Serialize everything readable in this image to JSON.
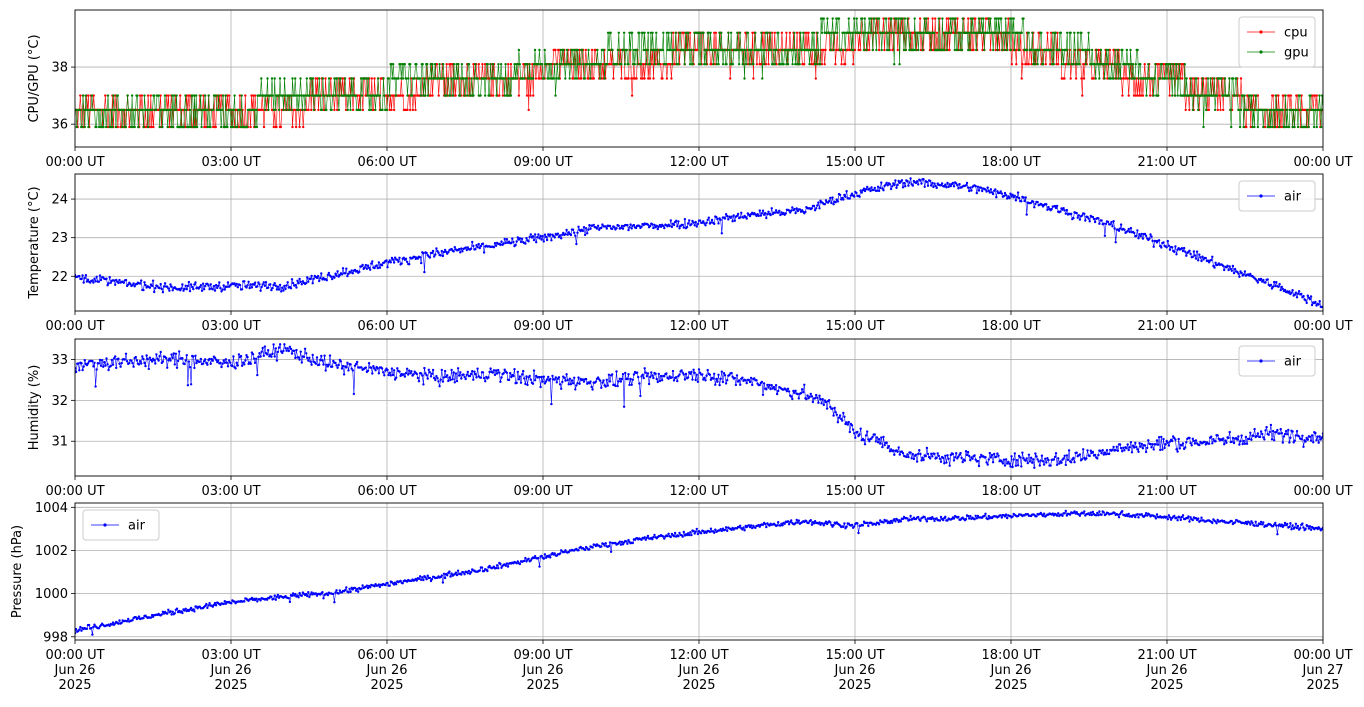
{
  "figure": {
    "background": "#ffffff",
    "grid_color": "#b0b0b0",
    "axis_color": "#000000"
  },
  "chart_data": [
    {
      "type": "line",
      "ylabel": "CPU/GPU (°C)",
      "xlim": [
        "2025-06-26T00:00Z",
        "2025-06-27T00:00Z"
      ],
      "ylim": [
        35.2,
        40.0
      ],
      "yticks": [
        36,
        38
      ],
      "xtick_labels": [
        "00:00 UT",
        "03:00 UT",
        "06:00 UT",
        "09:00 UT",
        "12:00 UT",
        "15:00 UT",
        "18:00 UT",
        "21:00 UT",
        "00:00 UT"
      ],
      "grid": true,
      "legend": "upper right",
      "series": [
        {
          "name": "cpu",
          "color": "#ff0000",
          "marker": "dot",
          "x_hours": [
            0,
            1,
            2,
            3,
            4,
            5,
            6,
            7,
            8,
            9,
            10,
            11,
            12,
            13,
            14,
            15,
            16,
            17,
            18,
            19,
            20,
            21,
            22,
            23,
            24
          ],
          "values": [
            36.5,
            36.6,
            36.6,
            36.7,
            36.7,
            36.8,
            37.1,
            37.4,
            37.6,
            37.9,
            38.1,
            38.3,
            38.4,
            38.5,
            38.6,
            38.9,
            39.2,
            39.2,
            38.9,
            38.3,
            37.9,
            37.5,
            36.9,
            36.6,
            36.5
          ],
          "fluctuation_levels": [
            35.9,
            36.5,
            37.0,
            37.6,
            38.1,
            38.6,
            39.2,
            39.7
          ]
        },
        {
          "name": "gpu",
          "color": "#008000",
          "marker": "dot",
          "x_hours": [
            0,
            1,
            2,
            3,
            4,
            5,
            6,
            7,
            8,
            9,
            10,
            11,
            12,
            13,
            14,
            15,
            16,
            17,
            18,
            19,
            20,
            21,
            22,
            23,
            24
          ],
          "values": [
            36.7,
            36.6,
            36.6,
            36.7,
            36.8,
            37.0,
            37.3,
            37.5,
            37.7,
            38.0,
            38.3,
            38.5,
            38.6,
            38.7,
            38.8,
            39.1,
            39.3,
            39.2,
            39.0,
            38.6,
            38.1,
            37.6,
            36.9,
            36.5,
            36.3
          ],
          "fluctuation_levels": [
            35.9,
            36.5,
            37.0,
            37.6,
            38.1,
            38.6,
            39.2,
            39.7
          ]
        }
      ]
    },
    {
      "type": "line",
      "ylabel": "Temperature (°C)",
      "xlim": [
        "2025-06-26T00:00Z",
        "2025-06-27T00:00Z"
      ],
      "ylim": [
        21.1,
        24.65
      ],
      "yticks": [
        22,
        23,
        24
      ],
      "xtick_labels": [
        "00:00 UT",
        "03:00 UT",
        "06:00 UT",
        "09:00 UT",
        "12:00 UT",
        "15:00 UT",
        "18:00 UT",
        "21:00 UT",
        "00:00 UT"
      ],
      "grid": true,
      "legend": "upper right",
      "series": [
        {
          "name": "air",
          "color": "#0000ff",
          "marker": "dot",
          "x_hours": [
            0,
            1,
            2,
            3,
            4,
            4.5,
            5,
            6,
            7,
            8,
            9,
            10,
            11,
            12,
            13,
            14,
            15,
            16,
            17,
            18,
            19,
            20,
            21,
            22,
            23,
            24
          ],
          "values": [
            22.0,
            21.8,
            21.7,
            21.75,
            21.75,
            21.9,
            22.05,
            22.35,
            22.6,
            22.8,
            23.0,
            23.25,
            23.3,
            23.4,
            23.6,
            23.7,
            24.15,
            24.45,
            24.35,
            24.1,
            23.7,
            23.3,
            22.8,
            22.3,
            21.8,
            21.25
          ],
          "noise": 0.06
        }
      ]
    },
    {
      "type": "line",
      "ylabel": "Humidity (%)",
      "xlim": [
        "2025-06-26T00:00Z",
        "2025-06-27T00:00Z"
      ],
      "ylim": [
        30.15,
        33.5
      ],
      "yticks": [
        31,
        32,
        33
      ],
      "xtick_labels": [
        "00:00 UT",
        "03:00 UT",
        "06:00 UT",
        "09:00 UT",
        "12:00 UT",
        "15:00 UT",
        "18:00 UT",
        "21:00 UT",
        "00:00 UT"
      ],
      "grid": true,
      "legend": "upper right",
      "series": [
        {
          "name": "air",
          "color": "#0000ff",
          "marker": "dot",
          "x_hours": [
            0,
            1,
            2,
            3,
            4,
            5,
            6,
            7,
            8,
            9,
            10,
            11,
            12,
            13,
            14,
            14.5,
            15,
            15.5,
            16,
            17,
            18,
            19,
            20,
            21,
            22,
            23,
            24
          ],
          "values": [
            32.85,
            32.95,
            33.0,
            32.9,
            33.25,
            32.85,
            32.7,
            32.55,
            32.65,
            32.5,
            32.45,
            32.55,
            32.65,
            32.45,
            32.15,
            31.9,
            31.2,
            31.0,
            30.65,
            30.6,
            30.55,
            30.55,
            30.8,
            30.95,
            31.0,
            31.2,
            31.1
          ],
          "noise": 0.09
        }
      ]
    },
    {
      "type": "line",
      "ylabel": "Pressure (hPa)",
      "xlim": [
        "2025-06-26T00:00Z",
        "2025-06-27T00:00Z"
      ],
      "ylim": [
        997.85,
        1004.2
      ],
      "yticks": [
        998,
        1000,
        1002,
        1004
      ],
      "xtick_labels": [
        "00:00 UT\nJun 26\n2025",
        "03:00 UT\nJun 26\n2025",
        "06:00 UT\nJun 26\n2025",
        "09:00 UT\nJun 26\n2025",
        "12:00 UT\nJun 26\n2025",
        "15:00 UT\nJun 26\n2025",
        "18:00 UT\nJun 26\n2025",
        "21:00 UT\nJun 26\n2025",
        "00:00 UT\nJun 27\n2025"
      ],
      "grid": true,
      "legend": "upper left",
      "series": [
        {
          "name": "air",
          "color": "#0000ff",
          "marker": "dot",
          "x_hours": [
            0,
            1,
            2,
            3,
            4,
            5,
            6,
            7,
            8,
            9,
            10,
            11,
            12,
            13,
            14,
            15,
            16,
            17,
            18,
            19,
            20,
            21,
            22,
            23,
            24
          ],
          "values": [
            998.3,
            998.75,
            999.2,
            999.6,
            999.85,
            1000.05,
            1000.45,
            1000.8,
            1001.2,
            1001.7,
            1002.2,
            1002.55,
            1002.85,
            1003.1,
            1003.35,
            1003.15,
            1003.45,
            1003.5,
            1003.6,
            1003.7,
            1003.7,
            1003.55,
            1003.35,
            1003.2,
            1003.0
          ],
          "noise": 0.06
        }
      ]
    }
  ]
}
